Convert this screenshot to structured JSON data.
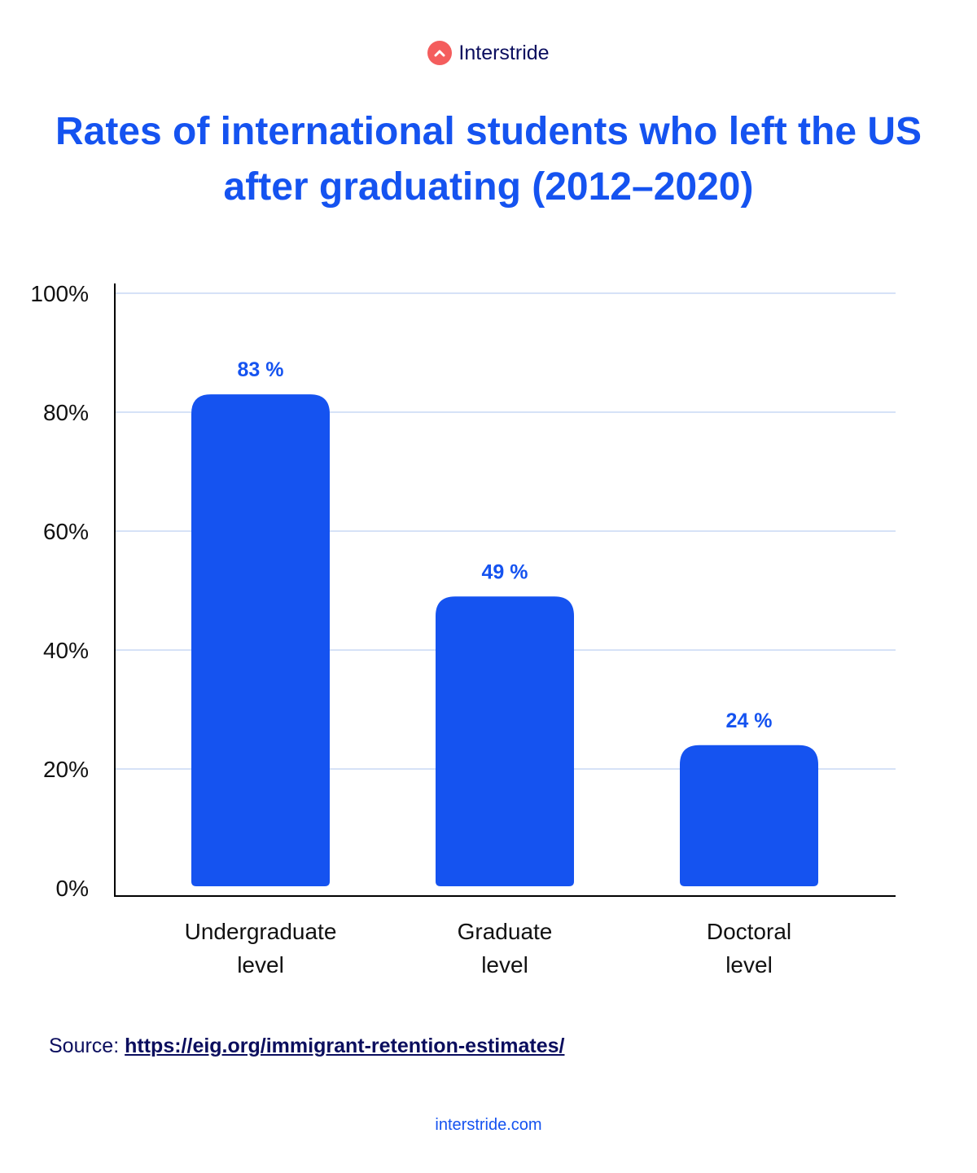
{
  "brand": {
    "name": "Interstride",
    "logo_icon": "chevron-up-icon",
    "logo_color": "#f45d5d"
  },
  "chart_data": {
    "type": "bar",
    "title": "Rates of international students who left the US after graduating (2012–2020)",
    "categories": [
      "Undergraduate level",
      "Graduate level",
      "Doctoral level"
    ],
    "category_lines": [
      [
        "Undergraduate",
        "level"
      ],
      [
        "Graduate",
        "level"
      ],
      [
        "Doctoral",
        "level"
      ]
    ],
    "values": [
      83,
      49,
      24
    ],
    "data_labels": [
      "83 %",
      "49 %",
      "24 %"
    ],
    "ylim": [
      0,
      100
    ],
    "yticks": [
      0,
      20,
      40,
      60,
      80,
      100
    ],
    "ytick_labels": [
      "0%",
      "20%",
      "40%",
      "60%",
      "80%",
      "100%"
    ],
    "grid": true,
    "bar_color": "#1553f0",
    "label_color": "#1553f0",
    "grid_color": "#d6e2f7"
  },
  "source": {
    "label": "Source:",
    "link": "https://eig.org/immigrant-retention-estimates/"
  },
  "footer": {
    "site": "interstride.com"
  }
}
